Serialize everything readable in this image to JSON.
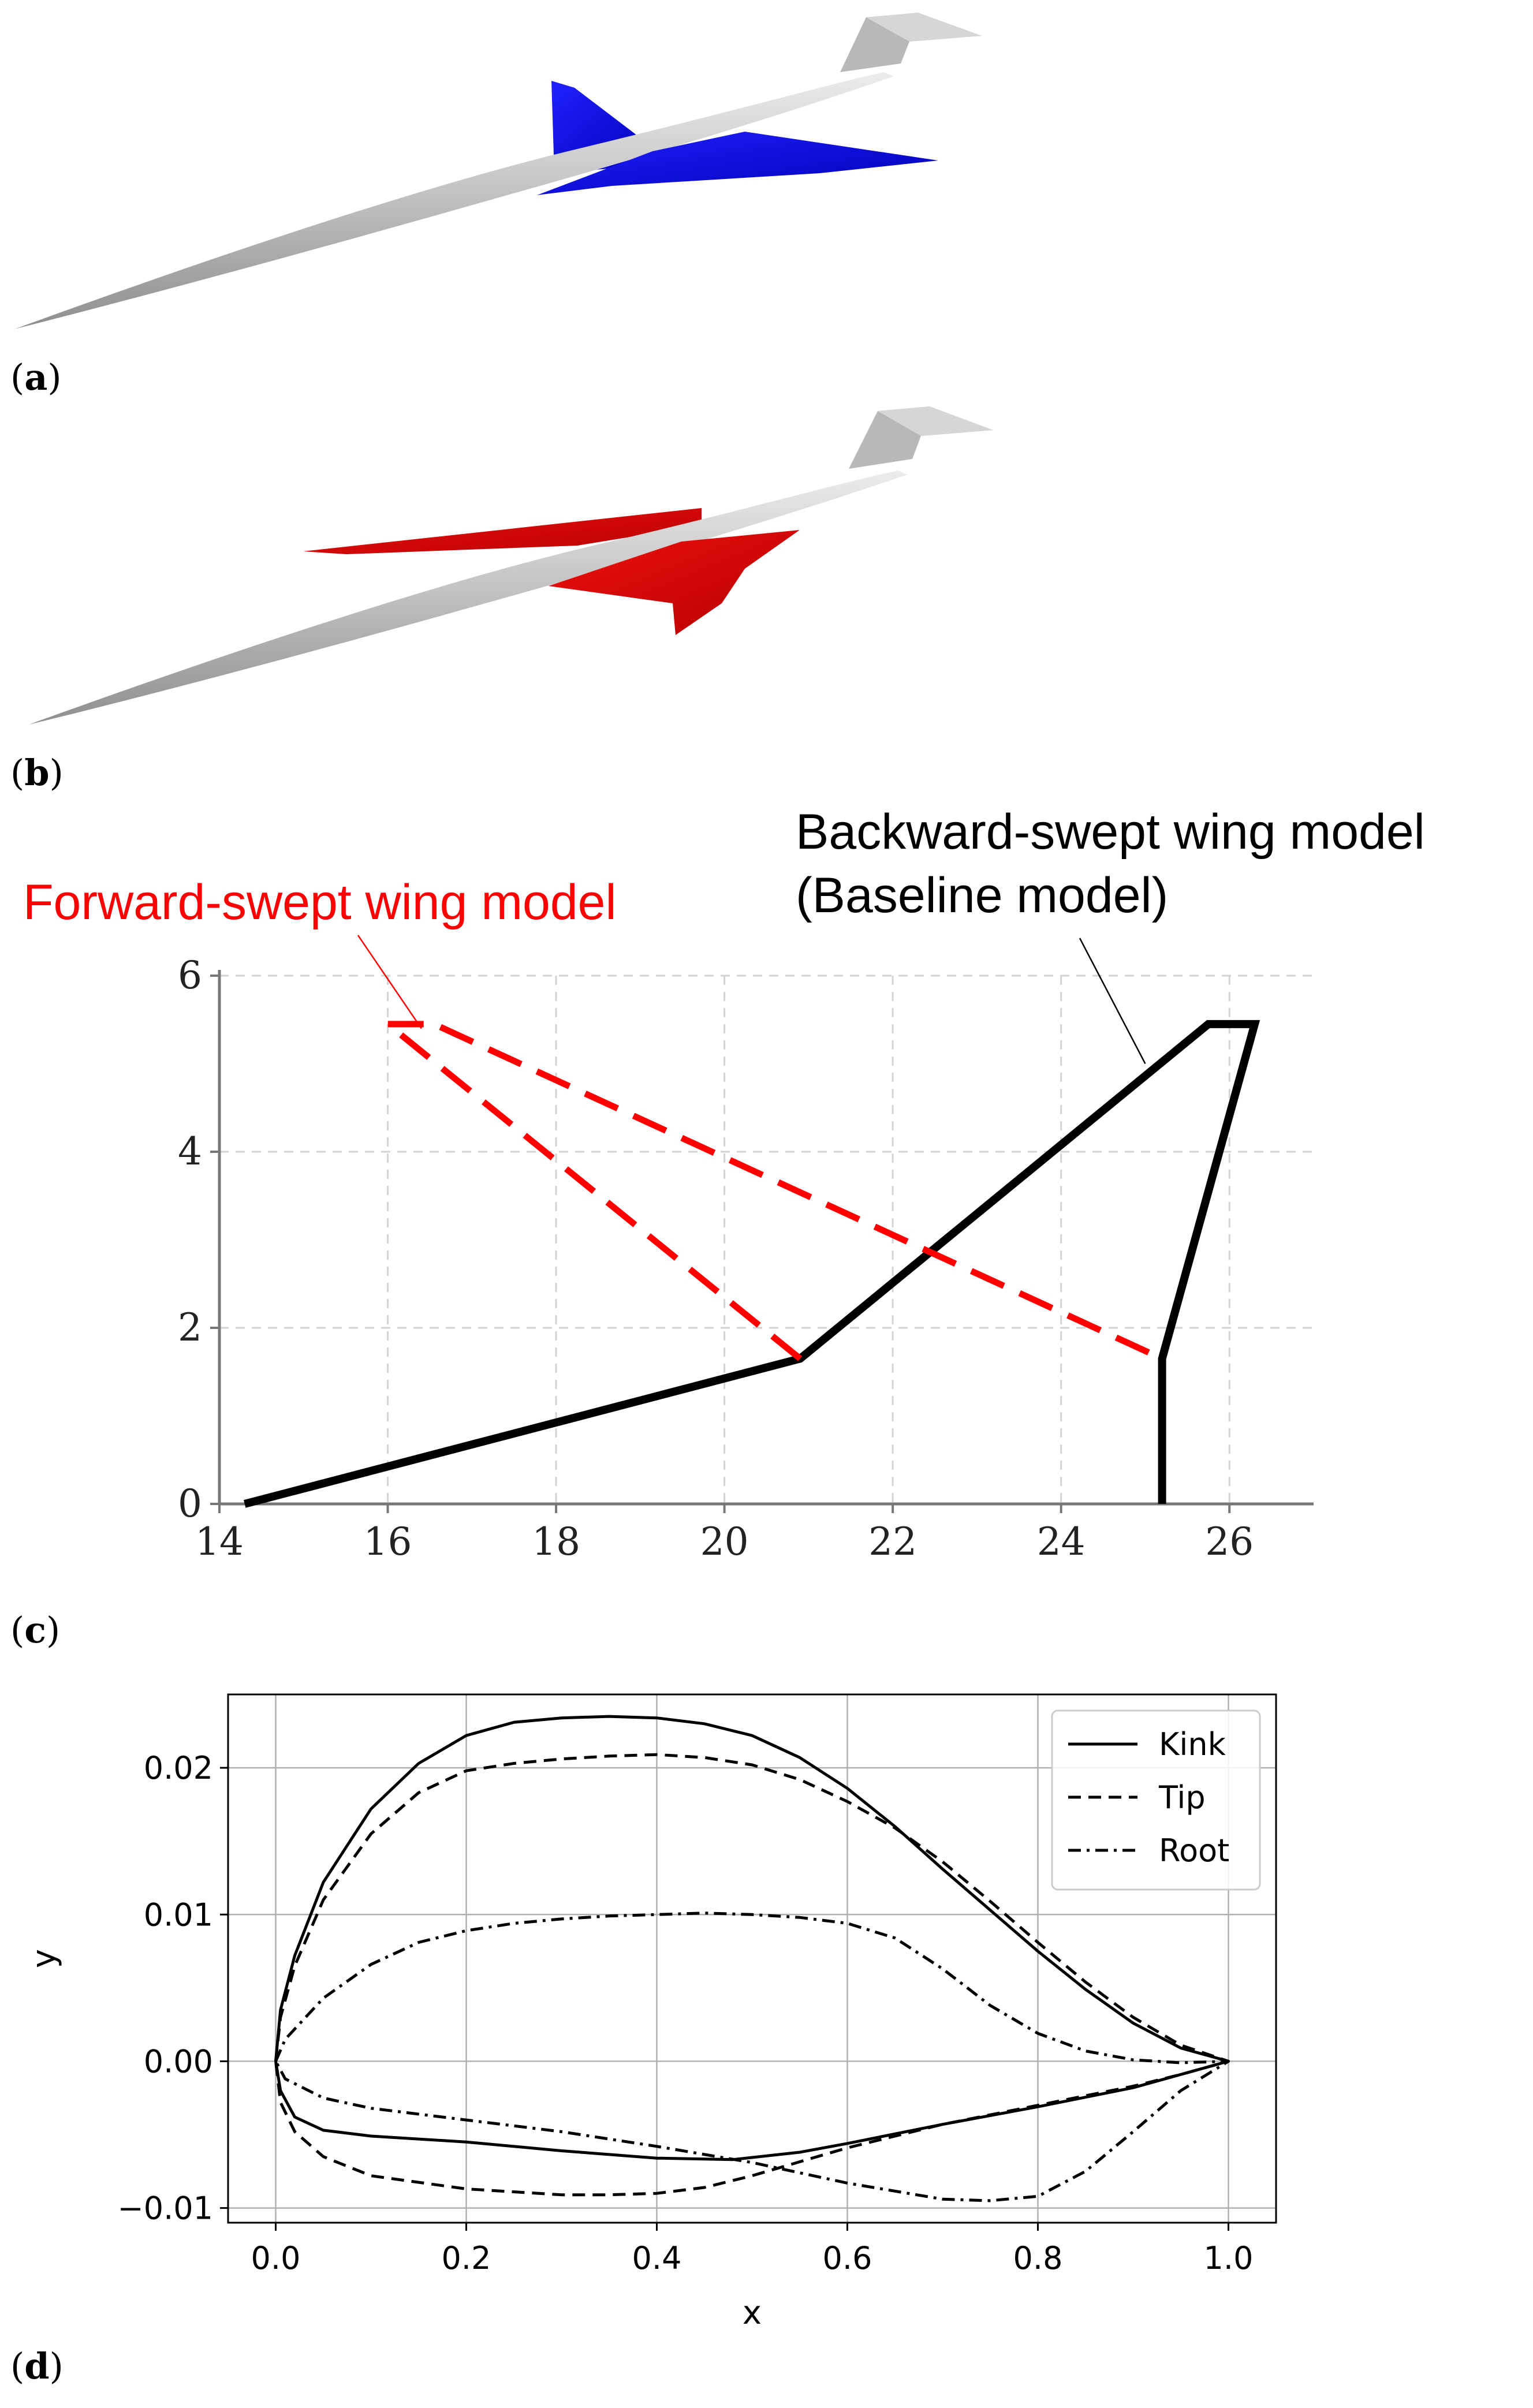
{
  "panels": {
    "a": {
      "label": "a",
      "fuselage_color": "#b4b4b4",
      "wing_color": "#0000dd"
    },
    "b": {
      "label": "b",
      "fuselage_color": "#b4b4b4",
      "wing_color": "#dd0000"
    },
    "c": {
      "label": "c"
    },
    "d": {
      "label": "d"
    }
  },
  "chart_data": [
    {
      "type": "line",
      "panel": "c",
      "xlim": [
        14,
        27
      ],
      "ylim": [
        0,
        6
      ],
      "x_ticks": [
        "14",
        "16",
        "18",
        "20",
        "22",
        "24",
        "26"
      ],
      "y_ticks": [
        "0",
        "2",
        "4",
        "6"
      ],
      "grid": true,
      "annotations": [
        {
          "lines": [
            "Forward-swept wing model"
          ],
          "color": "#ff0000",
          "target": [
            16.4,
            5.4
          ]
        },
        {
          "lines": [
            "Backward-swept wing model",
            "(Baseline model)"
          ],
          "color": "#000000",
          "target": [
            25.0,
            5.0
          ]
        }
      ],
      "series": [
        {
          "style": "solid",
          "color": "#000000",
          "points": [
            [
              14.3,
              0
            ],
            [
              20.9,
              1.65
            ],
            [
              25.75,
              5.45
            ],
            [
              26.3,
              5.45
            ],
            [
              25.2,
              1.65
            ],
            [
              25.2,
              0
            ]
          ]
        },
        {
          "style": "dashed",
          "color": "#ff0000",
          "points": [
            [
              20.9,
              1.65
            ],
            [
              16.0,
              5.45
            ],
            [
              16.55,
              5.45
            ],
            [
              25.2,
              1.65
            ]
          ]
        }
      ]
    },
    {
      "type": "line",
      "panel": "d",
      "xlim": [
        -0.05,
        1.05
      ],
      "ylim": [
        -0.011,
        0.025
      ],
      "xlabel": "x",
      "ylabel": "y",
      "x_ticks": [
        "0.0",
        "0.2",
        "0.4",
        "0.6",
        "0.8",
        "1.0"
      ],
      "y_ticks": [
        "0.02",
        "0.01",
        "0.00",
        "−0.01"
      ],
      "grid": true,
      "legend_position": "top-right",
      "series": [
        {
          "name": "Kink",
          "style": "solid",
          "upper": [
            [
              0,
              0
            ],
            [
              0.005,
              0.0035
            ],
            [
              0.02,
              0.0072
            ],
            [
              0.05,
              0.0122
            ],
            [
              0.1,
              0.0172
            ],
            [
              0.15,
              0.0203
            ],
            [
              0.2,
              0.0222
            ],
            [
              0.25,
              0.0231
            ],
            [
              0.3,
              0.0234
            ],
            [
              0.35,
              0.0235
            ],
            [
              0.4,
              0.0234
            ],
            [
              0.45,
              0.023
            ],
            [
              0.5,
              0.0222
            ],
            [
              0.55,
              0.0207
            ],
            [
              0.6,
              0.0186
            ],
            [
              0.65,
              0.016
            ],
            [
              0.7,
              0.0131
            ],
            [
              0.75,
              0.0103
            ],
            [
              0.8,
              0.0075
            ],
            [
              0.85,
              0.0049
            ],
            [
              0.9,
              0.0026
            ],
            [
              0.95,
              0.0009
            ],
            [
              1.0,
              0
            ]
          ],
          "lower": [
            [
              0,
              0
            ],
            [
              0.005,
              -0.002
            ],
            [
              0.02,
              -0.0038
            ],
            [
              0.05,
              -0.0047
            ],
            [
              0.1,
              -0.0051
            ],
            [
              0.2,
              -0.0055
            ],
            [
              0.3,
              -0.0061
            ],
            [
              0.4,
              -0.0066
            ],
            [
              0.48,
              -0.0067
            ],
            [
              0.55,
              -0.0062
            ],
            [
              0.6,
              -0.0056
            ],
            [
              0.7,
              -0.0043
            ],
            [
              0.8,
              -0.0031
            ],
            [
              0.9,
              -0.0018
            ],
            [
              0.95,
              -0.0009
            ],
            [
              1.0,
              0
            ]
          ]
        },
        {
          "name": "Tip",
          "style": "dashed",
          "upper": [
            [
              0,
              0
            ],
            [
              0.005,
              0.003
            ],
            [
              0.02,
              0.0065
            ],
            [
              0.05,
              0.011
            ],
            [
              0.1,
              0.0155
            ],
            [
              0.15,
              0.0183
            ],
            [
              0.2,
              0.0198
            ],
            [
              0.25,
              0.0203
            ],
            [
              0.3,
              0.0206
            ],
            [
              0.35,
              0.0208
            ],
            [
              0.4,
              0.0209
            ],
            [
              0.45,
              0.0207
            ],
            [
              0.5,
              0.0202
            ],
            [
              0.55,
              0.0192
            ],
            [
              0.6,
              0.0177
            ],
            [
              0.65,
              0.0159
            ],
            [
              0.7,
              0.0136
            ],
            [
              0.75,
              0.0109
            ],
            [
              0.8,
              0.0081
            ],
            [
              0.85,
              0.0054
            ],
            [
              0.9,
              0.003
            ],
            [
              0.95,
              0.0011
            ],
            [
              1.0,
              0
            ]
          ],
          "lower": [
            [
              0,
              0
            ],
            [
              0.005,
              -0.0028
            ],
            [
              0.02,
              -0.0048
            ],
            [
              0.05,
              -0.0065
            ],
            [
              0.1,
              -0.0078
            ],
            [
              0.2,
              -0.0087
            ],
            [
              0.3,
              -0.0091
            ],
            [
              0.35,
              -0.0091
            ],
            [
              0.4,
              -0.009
            ],
            [
              0.45,
              -0.0086
            ],
            [
              0.5,
              -0.0078
            ],
            [
              0.6,
              -0.0059
            ],
            [
              0.7,
              -0.0043
            ],
            [
              0.8,
              -0.003
            ],
            [
              0.9,
              -0.0017
            ],
            [
              0.95,
              -0.0009
            ],
            [
              1.0,
              0
            ]
          ]
        },
        {
          "name": "Root",
          "style": "dashdot",
          "upper": [
            [
              0,
              0
            ],
            [
              0.01,
              0.0015
            ],
            [
              0.05,
              0.0043
            ],
            [
              0.1,
              0.0066
            ],
            [
              0.15,
              0.0081
            ],
            [
              0.2,
              0.0089
            ],
            [
              0.25,
              0.0094
            ],
            [
              0.3,
              0.0097
            ],
            [
              0.35,
              0.0099
            ],
            [
              0.4,
              0.01
            ],
            [
              0.45,
              0.0101
            ],
            [
              0.5,
              0.01
            ],
            [
              0.55,
              0.0098
            ],
            [
              0.6,
              0.0094
            ],
            [
              0.65,
              0.0084
            ],
            [
              0.7,
              0.0063
            ],
            [
              0.75,
              0.0038
            ],
            [
              0.8,
              0.0019
            ],
            [
              0.85,
              0.0007
            ],
            [
              0.9,
              0.0001
            ],
            [
              0.95,
              -0.0001
            ],
            [
              1.0,
              0
            ]
          ],
          "lower": [
            [
              0,
              0
            ],
            [
              0.01,
              -0.0012
            ],
            [
              0.05,
              -0.0025
            ],
            [
              0.1,
              -0.0032
            ],
            [
              0.2,
              -0.004
            ],
            [
              0.3,
              -0.0048
            ],
            [
              0.4,
              -0.0058
            ],
            [
              0.5,
              -0.0069
            ],
            [
              0.6,
              -0.0083
            ],
            [
              0.7,
              -0.0094
            ],
            [
              0.75,
              -0.0095
            ],
            [
              0.8,
              -0.0092
            ],
            [
              0.85,
              -0.0075
            ],
            [
              0.9,
              -0.0048
            ],
            [
              0.95,
              -0.002
            ],
            [
              1.0,
              0
            ]
          ]
        }
      ]
    }
  ]
}
